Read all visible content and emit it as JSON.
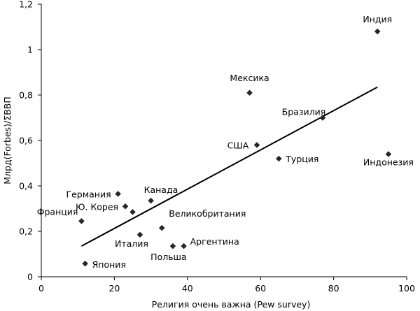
{
  "chart_data": {
    "type": "scatter",
    "title": "",
    "xlabel": "Религия очень важна (Pew survey)",
    "ylabel": "Млрд(Forbes)/ΣВВП",
    "xlim": [
      0,
      100
    ],
    "ylim": [
      0,
      1.2
    ],
    "xticks": [
      0,
      20,
      40,
      60,
      80,
      100
    ],
    "yticks": [
      0,
      0.2,
      0.4,
      0.6,
      0.8,
      1,
      1.2
    ],
    "xtick_labels": [
      "0",
      "20",
      "40",
      "60",
      "80",
      "100"
    ],
    "ytick_labels": [
      "0",
      "0,2",
      "0,4",
      "0,6",
      "0,8",
      "1",
      "1,2"
    ],
    "grid": false,
    "points": [
      {
        "label": "Индия",
        "x": 92,
        "y": 1.08
      },
      {
        "label": "Мексика",
        "x": 57,
        "y": 0.81
      },
      {
        "label": "Бразилия",
        "x": 77,
        "y": 0.7
      },
      {
        "label": "США",
        "x": 59,
        "y": 0.58
      },
      {
        "label": "Турция",
        "x": 65,
        "y": 0.52
      },
      {
        "label": "Индонезия",
        "x": 95,
        "y": 0.54
      },
      {
        "label": "Германия",
        "x": 21,
        "y": 0.365
      },
      {
        "label": "Канада",
        "x": 30,
        "y": 0.335
      },
      {
        "label": "Ю. Корея",
        "x": 23,
        "y": 0.31
      },
      {
        "label": "",
        "x": 25,
        "y": 0.285
      },
      {
        "label": "Франция",
        "x": 11,
        "y": 0.245
      },
      {
        "label": "Великобритания",
        "x": 33,
        "y": 0.215
      },
      {
        "label": "Италия",
        "x": 27,
        "y": 0.185
      },
      {
        "label": "Польша",
        "x": 36,
        "y": 0.135
      },
      {
        "label": "Аргентина",
        "x": 39,
        "y": 0.135
      },
      {
        "label": "Япония",
        "x": 12,
        "y": 0.058
      }
    ],
    "trendline": {
      "x1": 11,
      "y1": 0.135,
      "x2": 92,
      "y2": 0.835
    }
  }
}
